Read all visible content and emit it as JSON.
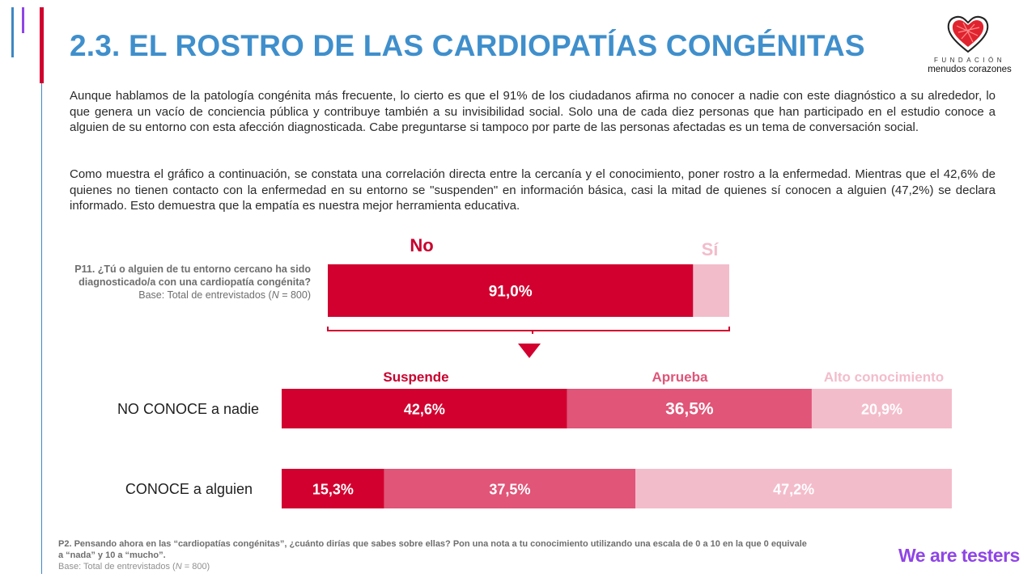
{
  "header": {
    "title": "2.3. EL ROSTRO DE LAS CARDIOPATÍAS CONGÉNITAS",
    "logo": {
      "icon": "heart-icon",
      "org_top": "FUNDACIÓN",
      "org_name": "menudos corazones"
    }
  },
  "body": {
    "paragraph_1": "Aunque hablamos de la patología congénita más frecuente, lo cierto es que el 91% de los ciudadanos afirma no conocer a nadie con este diagnóstico a su alrededor, lo que genera un vacío de conciencia pública y contribuye también a su invisibilidad social. Solo una de cada diez personas que han participado en el estudio conoce a alguien de su entorno con esta afección diagnosticada. Cabe preguntarse si tampoco por parte de las personas afectadas es un tema de conversación social.",
    "paragraph_2": "Como muestra el gráfico a continuación, se constata una correlación directa entre la cercanía y el conocimiento, poner rostro a la enfermedad. Mientras que el 42,6% de quienes no tienen contacto con la enfermedad en su entorno se \"suspenden\" en información básica, casi la mitad de quienes sí conocen a alguien (47,2%) se declara informado. Esto demuestra que la empatía es nuestra mejor herramienta educativa."
  },
  "question_1": {
    "text": "P11. ¿Tú o alguien de tu entorno cercano ha sido diagnosticado/a con una cardiopatía congénita?",
    "base_prefix": "Base: Total de entrevistados (",
    "base_n": "N",
    "base_suffix": " = 800)"
  },
  "footer": {
    "question": "P2. Pensando ahora en las “cardiopatías congénitas”, ¿cuánto dirías que sabes sobre ellas? Pon una nota a tu conocimiento utilizando una escala de 0 a 10 en la que 0 equivale a “nada” y 10 a “mucho”.",
    "base_prefix": "Base: Total de entrevistados (",
    "base_n": "N",
    "base_suffix": " = 800)",
    "brand": "We are testers"
  },
  "colors": {
    "title_blue": "#3f8fcc",
    "red": "#d1002f",
    "mid_pink": "#e05578",
    "light_pink": "#f3bccb",
    "brand_purple": "#8f45e6"
  },
  "chart_data": [
    {
      "type": "bar",
      "orientation": "horizontal-stacked",
      "title": "P11. ¿Tú o alguien de tu entorno cercano ha sido diagnosticado/a con una cardiopatía congénita?",
      "categories": [
        "Total"
      ],
      "series": [
        {
          "name": "No",
          "values": [
            91.0
          ],
          "label": "91,0%",
          "color": "#d1002f"
        },
        {
          "name": "Sí",
          "values": [
            9.0
          ],
          "label": "",
          "color": "#f3bccb"
        }
      ],
      "unit": "%",
      "xlim": [
        0,
        100
      ],
      "legend": "top",
      "annotation": "bracket under bar with down-arrow pointing to P2 chart"
    },
    {
      "type": "bar",
      "orientation": "horizontal-stacked",
      "title": "P2. Conocimiento sobre cardiopatías congénitas",
      "categories": [
        "NO CONOCE a nadie",
        "CONOCE a alguien"
      ],
      "series": [
        {
          "name": "Suspende",
          "values": [
            42.6,
            15.3
          ],
          "labels": [
            "42,6%",
            "15,3%"
          ],
          "color": "#d1002f"
        },
        {
          "name": "Aprueba",
          "values": [
            36.5,
            37.5
          ],
          "labels": [
            "36,5%",
            "37,5%"
          ],
          "color": "#e05578"
        },
        {
          "name": "Alto conocimiento",
          "values": [
            20.9,
            47.2
          ],
          "labels": [
            "20,9%",
            "47,2%"
          ],
          "color": "#f3bccb"
        }
      ],
      "unit": "%",
      "xlim": [
        0,
        100
      ],
      "legend": "top"
    }
  ]
}
